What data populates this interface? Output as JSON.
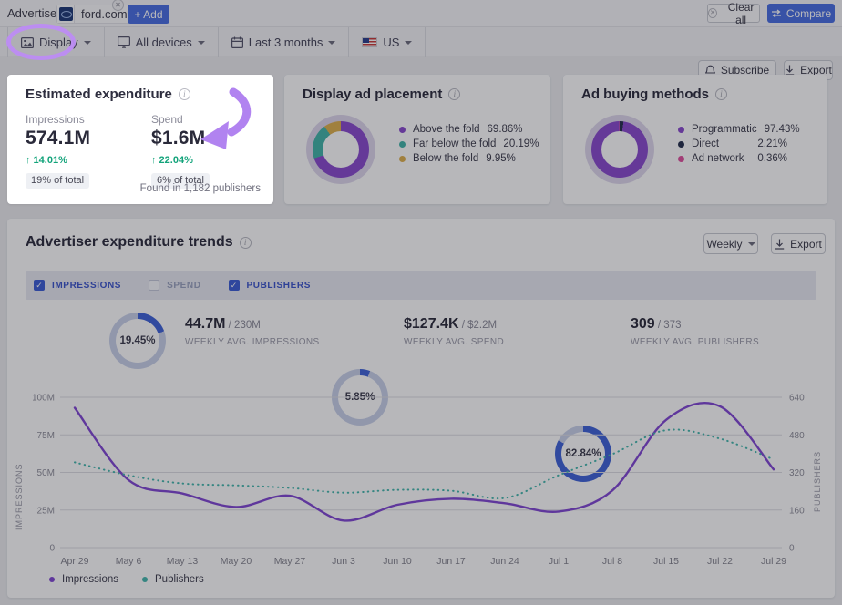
{
  "colors": {
    "accent_blue": "#4a6fe3",
    "growth_green": "#12a37a",
    "gauge_blue": "#4064d8",
    "gauge_track": "#c9d1ea",
    "annotation_purple": "#bd8cf4",
    "donut_purple": "#8a4bcf",
    "donut_teal": "#43b5aa",
    "donut_yellow": "#dfb14e",
    "donut_navy": "#26304e",
    "donut_pink": "#e0519e"
  },
  "topbar": {
    "advertiser_label": "Advertiser:",
    "advertiser_domain": "ford.com",
    "chip_close": "✕",
    "add_button": "+ Add",
    "clear_all": "Clear all",
    "compare": "Compare"
  },
  "toolbar": {
    "display_filter": "Display",
    "devices_filter": "All devices",
    "date_filter": "Last 3 months",
    "region_filter": "US",
    "subscribe": "Subscribe",
    "export": "Export"
  },
  "expenditure_card": {
    "title": "Estimated expenditure",
    "impressions": {
      "label": "Impressions",
      "value": "574.1M",
      "growth": "↑  14.01%",
      "share": "19% of total"
    },
    "spend": {
      "label": "Spend",
      "value": "$1.6M",
      "growth": "↑  22.04%",
      "share": "6% of total"
    },
    "footnote": "Found in 1,182 publishers"
  },
  "placement_card": {
    "title": "Display ad placement",
    "legend": [
      {
        "label": "Above the fold",
        "value": "69.86%"
      },
      {
        "label": "Far below the fold",
        "value": "20.19%"
      },
      {
        "label": "Below the fold",
        "value": "9.95%"
      }
    ],
    "segments": [
      {
        "color": "#8a4bcf",
        "pct": 69.86
      },
      {
        "color": "#43b5aa",
        "pct": 20.19
      },
      {
        "color": "#dfb14e",
        "pct": 9.95
      }
    ]
  },
  "buying_card": {
    "title": "Ad buying methods",
    "legend": [
      {
        "label": "Programmatic",
        "value": "97.43%"
      },
      {
        "label": "Direct",
        "value": "2.21%"
      },
      {
        "label": "Ad network",
        "value": "0.36%"
      }
    ],
    "segments": [
      {
        "color": "#26304e",
        "pct": 2.21
      },
      {
        "color": "#8a4bcf",
        "pct": 97.43
      },
      {
        "color": "#e0519e",
        "pct": 0.36
      }
    ]
  },
  "trends": {
    "title": "Advertiser expenditure trends",
    "interval": "Weekly",
    "export": "Export",
    "toggles": [
      {
        "label": "IMPRESSIONS",
        "checked": true
      },
      {
        "label": "SPEND",
        "checked": false
      },
      {
        "label": "PUBLISHERS",
        "checked": true
      }
    ],
    "gauges": [
      {
        "percent": "19.45%",
        "pct": 19.45,
        "value": "44.7M",
        "total": " / 230M",
        "caption": "WEEKLY AVG. IMPRESSIONS"
      },
      {
        "percent": "5.85%",
        "pct": 5.85,
        "value": "$127.4K",
        "total": " / $2.2M",
        "caption": "WEEKLY AVG. SPEND"
      },
      {
        "percent": "82.84%",
        "pct": 82.84,
        "value": "309",
        "total": " / 373",
        "caption": "WEEKLY AVG. PUBLISHERS"
      }
    ]
  },
  "chart_data": {
    "type": "line",
    "x_labels": [
      "Apr 29",
      "May 6",
      "May 13",
      "May 20",
      "May 27",
      "Jun 3",
      "Jun 10",
      "Jun 17",
      "Jun 24",
      "Jul 1",
      "Jul 8",
      "Jul 15",
      "Jul 22",
      "Jul 29"
    ],
    "y_left": {
      "label": "IMPRESSIONS",
      "ticks": [
        "100M",
        "75M",
        "50M",
        "25M",
        "0"
      ],
      "max": 100
    },
    "y_right": {
      "label": "PUBLISHERS",
      "ticks": [
        "640",
        "480",
        "320",
        "160",
        "0"
      ],
      "max": 640
    },
    "series": [
      {
        "name": "Impressions",
        "axis": "left",
        "style": "solid",
        "color": "#8248d5",
        "values": [
          93,
          45,
          36,
          27,
          34.5,
          18,
          28.5,
          32.5,
          29.5,
          24,
          38,
          85,
          94,
          52
        ]
      },
      {
        "name": "Publishers",
        "axis": "right",
        "style": "dotted",
        "color": "#45b8ae",
        "values": [
          363,
          308,
          273,
          265,
          254,
          234,
          246,
          242,
          211,
          308,
          398,
          500,
          464,
          375
        ]
      }
    ],
    "grid": true,
    "legend_position": "bottom-left"
  }
}
